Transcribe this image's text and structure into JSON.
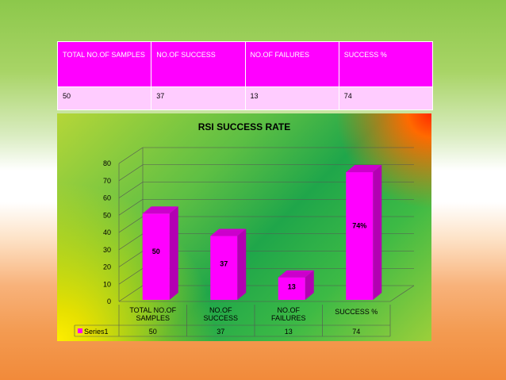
{
  "table": {
    "headers": [
      "TOTAL NO.OF SAMPLES",
      "NO.OF SUCCESS",
      "NO.OF FAILURES",
      "SUCCESS %"
    ],
    "row": [
      "50",
      "37",
      "13",
      "74"
    ]
  },
  "chart_data": {
    "type": "bar",
    "title": "RSI SUCCESS RATE",
    "categories": [
      "TOTAL NO.OF SAMPLES",
      "NO.OF SUCCESS",
      "NO.OF FAILURES",
      "SUCCESS %"
    ],
    "series": [
      {
        "name": "Series1",
        "values": [
          50,
          37,
          13,
          74
        ]
      }
    ],
    "data_labels": [
      "50",
      "37",
      "13",
      "74%"
    ],
    "table_values": [
      "50",
      "37",
      "13",
      "74"
    ],
    "yticks": [
      "0",
      "10",
      "20",
      "30",
      "40",
      "50",
      "60",
      "70",
      "80"
    ],
    "ylim": [
      0,
      80
    ],
    "grid": true,
    "legend": "bottom-left data table",
    "colors": {
      "bar": "#ff00ff",
      "bar_side": "#b300b3",
      "bar_top": "#cc00cc"
    }
  }
}
